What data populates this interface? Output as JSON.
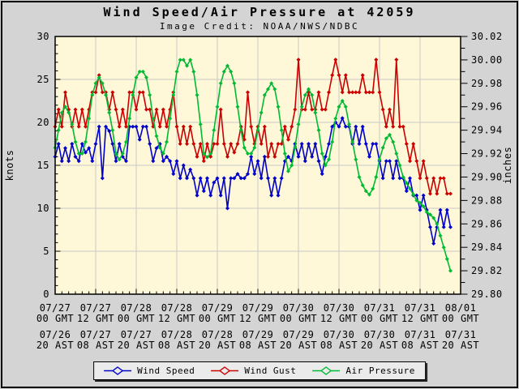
{
  "title": "Wind Speed/Air Pressure at 42059",
  "subtitle": "Image Credit: NOAA/NWS/NDBC",
  "station_id": "42059",
  "colors": {
    "page_bg": "#d4d4d4",
    "plot_bg": "#fff8d8",
    "grid": "#c9c9c9",
    "frame": "#000000",
    "wind_speed": "#0000CC",
    "wind_gust": "#CC0000",
    "air_pressure": "#00BB33",
    "legend_bg": "#ebebeb"
  },
  "legend": {
    "items": [
      {
        "label": "Wind Speed",
        "color": "#0000CC"
      },
      {
        "label": "Wind Gust",
        "color": "#CC0000"
      },
      {
        "label": "Air Pressure",
        "color": "#00BB33"
      }
    ]
  },
  "chart_data": {
    "type": "line",
    "title": "Wind Speed/Air Pressure at 42059",
    "subtitle": "Image Credit: NOAA/NWS/NDBC",
    "grid": true,
    "legend_position": "bottom",
    "x_axis": {
      "tick_hours": [
        0,
        12,
        24,
        36,
        48,
        60,
        72,
        84,
        96,
        108,
        120
      ],
      "labels_gmt": [
        [
          "07/27",
          "00 GMT"
        ],
        [
          "07/27",
          "12 GMT"
        ],
        [
          "07/28",
          "00 GMT"
        ],
        [
          "07/28",
          "12 GMT"
        ],
        [
          "07/29",
          "00 GMT"
        ],
        [
          "07/29",
          "12 GMT"
        ],
        [
          "07/30",
          "00 GMT"
        ],
        [
          "07/30",
          "12 GMT"
        ],
        [
          "07/31",
          "00 GMT"
        ],
        [
          "07/31",
          "12 GMT"
        ],
        [
          "08/01",
          "00 GMT"
        ]
      ],
      "labels_ast": [
        [
          "07/26",
          "20 AST"
        ],
        [
          "07/27",
          "08 AST"
        ],
        [
          "07/27",
          "20 AST"
        ],
        [
          "07/28",
          "08 AST"
        ],
        [
          "07/28",
          "20 AST"
        ],
        [
          "07/29",
          "08 AST"
        ],
        [
          "07/29",
          "20 AST"
        ],
        [
          "07/30",
          "08 AST"
        ],
        [
          "07/30",
          "20 AST"
        ],
        [
          "07/31",
          "08 AST"
        ],
        [
          "07/31",
          "20 AST"
        ]
      ],
      "span_hours": 120,
      "minor_tick_step_hours": 2
    },
    "y_left": {
      "label": "knots",
      "min": 0,
      "max": 30,
      "tick_values": [
        30,
        25,
        20,
        15,
        10,
        5,
        0
      ],
      "tick_labels": [
        "30",
        "25",
        "20",
        "15",
        "10",
        "5",
        "0"
      ],
      "minor_tick_step": 1
    },
    "y_right": {
      "label": "inches",
      "min": 29.8,
      "max": 30.02,
      "tick_values": [
        30.02,
        30.0,
        29.98,
        29.96,
        29.94,
        29.92,
        29.9,
        29.88,
        29.86,
        29.84,
        29.82,
        29.8
      ],
      "tick_labels": [
        "30.02",
        "30.00",
        "29.98",
        "29.96",
        "29.94",
        "29.92",
        "29.90",
        "29.88",
        "29.86",
        "29.84",
        "29.82",
        "29.80"
      ],
      "minor_tick_step": 0.01
    },
    "x_start": "07/27 00:00 GMT",
    "x_interval_hours": 1,
    "series": [
      {
        "name": "Wind Speed",
        "axis": "left",
        "units": "knots",
        "color": "#0000CC",
        "values": [
          16,
          17.5,
          15.5,
          17,
          15.5,
          17.5,
          16,
          15.5,
          17.5,
          16.5,
          17,
          15.5,
          17.5,
          19.5,
          13.5,
          19.5,
          19,
          17.5,
          15.5,
          17.5,
          16,
          15.5,
          19.5,
          19.5,
          19.5,
          18,
          19.5,
          19.5,
          17.5,
          15.5,
          17,
          17.5,
          15.5,
          16,
          15.5,
          14,
          15.5,
          13.5,
          15,
          13.5,
          14.5,
          13.5,
          11.5,
          13.5,
          12,
          13.5,
          11.5,
          13,
          13.5,
          11.5,
          13.5,
          10,
          13.5,
          13.5,
          14,
          13.5,
          13.5,
          14,
          16,
          14,
          15.5,
          13.5,
          16,
          13.5,
          11.5,
          13.5,
          11.5,
          13.5,
          15.5,
          16,
          15.5,
          17.5,
          16,
          17.5,
          15.5,
          17.5,
          16,
          17.5,
          15.5,
          14,
          16,
          17.5,
          19.5,
          20,
          19.5,
          20.5,
          19.5,
          19.5,
          17.5,
          19.5,
          17.5,
          19.5,
          17.5,
          16,
          17.5,
          17.5,
          15.5,
          13.5,
          15.5,
          15.5,
          13.5,
          15.5,
          13.5,
          13.5,
          12,
          13.5,
          11.5,
          11.5,
          9.8,
          11.5,
          9.8,
          7.8,
          5.9,
          7.8,
          9.8,
          7.8,
          9.8,
          7.8
        ]
      },
      {
        "name": "Wind Gust",
        "axis": "left",
        "units": "knots",
        "color": "#CC0000",
        "values": [
          19.5,
          21.5,
          19.5,
          23.5,
          21.5,
          19.5,
          21.5,
          19.5,
          21.5,
          19.5,
          21.5,
          23.5,
          23.5,
          25.5,
          23.5,
          23.5,
          21.5,
          23.5,
          21.5,
          19.5,
          21.5,
          19.5,
          23.5,
          23.5,
          21.5,
          23.5,
          23.5,
          21.5,
          21.5,
          19.5,
          21.5,
          19.5,
          21.5,
          19.5,
          21.5,
          23.5,
          19.5,
          17.5,
          19.5,
          17.5,
          19.5,
          17.5,
          16,
          17.5,
          15.5,
          17.5,
          16,
          17.5,
          17.5,
          21.5,
          17.5,
          16,
          17.5,
          16.5,
          17.5,
          19.5,
          18,
          23.5,
          19.5,
          17.5,
          19.5,
          17.5,
          19.5,
          16,
          17.5,
          16,
          17.5,
          17.5,
          19.5,
          18,
          19.5,
          21.5,
          27.3,
          21.5,
          21.5,
          23.5,
          21.5,
          21.5,
          23.5,
          21.5,
          21.5,
          23.5,
          25.5,
          27.3,
          25.5,
          23.5,
          25.5,
          23.5,
          23.5,
          23.5,
          23.5,
          25.5,
          23.5,
          23.5,
          23.5,
          27.3,
          23.5,
          21.5,
          19.5,
          21.5,
          19.5,
          27.3,
          19.5,
          19.5,
          17.5,
          15.5,
          17.5,
          15.5,
          13.5,
          15.5,
          13.5,
          11.7,
          13.5,
          11.7,
          13.5,
          13.5,
          11.7,
          11.7
        ]
      },
      {
        "name": "Air Pressure",
        "axis": "right",
        "units": "inches",
        "color": "#00BB33",
        "values": [
          29.925,
          29.94,
          29.955,
          29.96,
          29.955,
          29.945,
          29.93,
          29.92,
          29.92,
          29.93,
          29.95,
          29.97,
          29.98,
          29.985,
          29.98,
          29.97,
          29.955,
          29.94,
          29.92,
          29.915,
          29.92,
          29.93,
          29.95,
          29.97,
          29.985,
          29.99,
          29.99,
          29.985,
          29.97,
          29.95,
          29.935,
          29.925,
          29.92,
          29.93,
          29.95,
          29.97,
          29.99,
          30.0,
          30.0,
          29.995,
          30.0,
          29.99,
          29.97,
          29.945,
          29.92,
          29.917,
          29.92,
          29.94,
          29.96,
          29.98,
          29.99,
          29.995,
          29.99,
          29.98,
          29.96,
          29.94,
          29.925,
          29.92,
          29.92,
          29.925,
          29.94,
          29.955,
          29.97,
          29.975,
          29.98,
          29.975,
          29.96,
          29.94,
          29.92,
          29.905,
          29.91,
          29.925,
          29.945,
          29.96,
          29.97,
          29.975,
          29.97,
          29.955,
          29.94,
          29.92,
          29.91,
          29.915,
          29.93,
          29.95,
          29.96,
          29.965,
          29.96,
          29.945,
          29.93,
          29.915,
          29.9,
          29.893,
          29.888,
          29.885,
          29.89,
          29.9,
          29.915,
          29.925,
          29.933,
          29.936,
          29.93,
          29.92,
          29.91,
          29.9,
          29.895,
          29.89,
          29.885,
          29.88,
          29.878,
          29.875,
          29.87,
          29.868,
          29.865,
          29.86,
          29.85,
          29.84,
          29.83,
          29.82
        ]
      }
    ]
  }
}
